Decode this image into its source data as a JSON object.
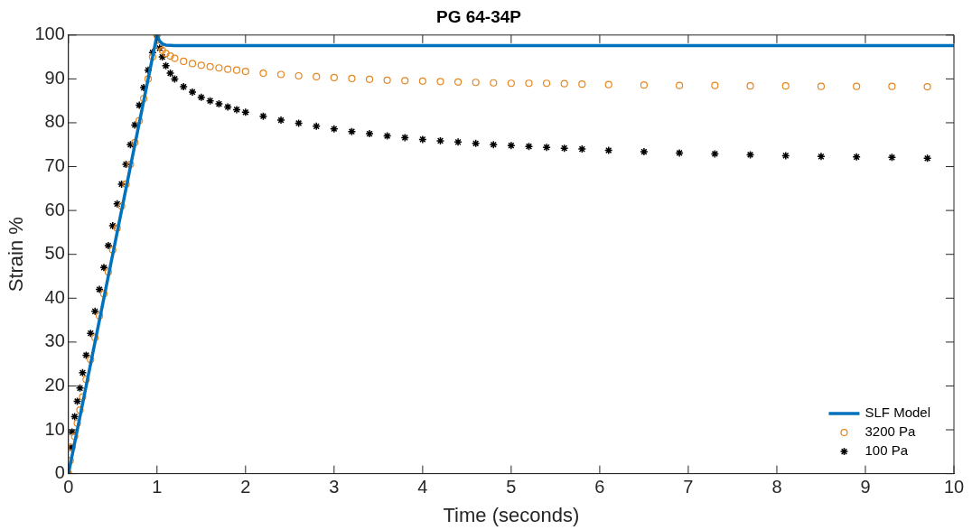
{
  "chart_data": {
    "type": "scatter",
    "title": "PG 64-34P",
    "xlabel": "Time (seconds)",
    "ylabel": "Strain %",
    "xlim": [
      0,
      10
    ],
    "xticks": [
      0,
      1,
      2,
      3,
      4,
      5,
      6,
      7,
      8,
      9,
      10
    ],
    "ylim": [
      0,
      100
    ],
    "yticks": [
      0,
      10,
      20,
      30,
      40,
      50,
      60,
      70,
      80,
      90,
      100
    ],
    "grid": false,
    "legend": "bottom right",
    "series": [
      {
        "name": "SLF Model",
        "type": "line",
        "color": "#0072bd",
        "marker": "none",
        "line_style": "solid",
        "x": [
          0,
          1,
          1.03,
          1.06,
          1.1,
          1.2,
          10
        ],
        "values": [
          0,
          100,
          98.6,
          98,
          97.7,
          97.6,
          97.6
        ]
      },
      {
        "name": "3200 Pa",
        "type": "scatter",
        "color": "#e6861e",
        "marker": "circle",
        "x": [
          0,
          0.02,
          0.04,
          0.07,
          0.1,
          0.13,
          0.16,
          0.2,
          0.25,
          0.3,
          0.35,
          0.4,
          0.45,
          0.5,
          0.55,
          0.6,
          0.65,
          0.7,
          0.75,
          0.8,
          0.85,
          0.9,
          0.95,
          1.0,
          1.03,
          1.06,
          1.1,
          1.15,
          1.2,
          1.3,
          1.4,
          1.5,
          1.6,
          1.7,
          1.8,
          1.9,
          2.0,
          2.2,
          2.4,
          2.6,
          2.8,
          3.0,
          3.2,
          3.4,
          3.6,
          3.8,
          4.0,
          4.2,
          4.4,
          4.6,
          4.8,
          5.0,
          5.2,
          5.4,
          5.6,
          5.8,
          6.1,
          6.5,
          6.9,
          7.3,
          7.7,
          8.1,
          8.5,
          8.9,
          9.3,
          9.7
        ],
        "values": [
          0,
          3,
          6,
          8.5,
          11.5,
          14.5,
          17.5,
          21.5,
          26,
          31,
          36,
          41,
          46,
          51,
          56,
          61,
          66,
          70.5,
          75.5,
          80.5,
          85.5,
          90,
          95,
          100,
          97.5,
          96.5,
          95.8,
          95.2,
          94.7,
          94.0,
          93.5,
          93.1,
          92.8,
          92.5,
          92.2,
          92.0,
          91.7,
          91.3,
          91.0,
          90.7,
          90.5,
          90.3,
          90.1,
          89.9,
          89.7,
          89.6,
          89.5,
          89.4,
          89.3,
          89.2,
          89.1,
          89.0,
          89.0,
          89.0,
          88.9,
          88.8,
          88.7,
          88.6,
          88.5,
          88.5,
          88.4,
          88.4,
          88.3,
          88.3,
          88.3,
          88.2
        ]
      },
      {
        "name": "100 Pa",
        "color": "#000000",
        "marker": "cross",
        "x": [
          0,
          0.02,
          0.04,
          0.07,
          0.1,
          0.13,
          0.16,
          0.2,
          0.25,
          0.3,
          0.35,
          0.4,
          0.45,
          0.5,
          0.55,
          0.6,
          0.65,
          0.7,
          0.75,
          0.8,
          0.85,
          0.9,
          0.95,
          1.0,
          1.03,
          1.06,
          1.1,
          1.15,
          1.2,
          1.3,
          1.4,
          1.5,
          1.6,
          1.7,
          1.8,
          1.9,
          2.0,
          2.2,
          2.4,
          2.6,
          2.8,
          3.0,
          3.2,
          3.4,
          3.6,
          3.8,
          4.0,
          4.2,
          4.4,
          4.6,
          4.8,
          5.0,
          5.2,
          5.4,
          5.6,
          5.8,
          6.1,
          6.5,
          6.9,
          7.3,
          7.7,
          8.1,
          8.5,
          8.9,
          9.3,
          9.7
        ],
        "values": [
          0,
          6,
          9.5,
          13,
          16.5,
          19.5,
          23,
          27,
          32,
          37,
          42,
          47,
          52,
          56.5,
          61.5,
          66,
          70.5,
          75,
          79.5,
          84,
          88,
          92,
          96,
          100,
          97,
          95,
          93,
          91.3,
          90,
          88.2,
          87,
          85.8,
          85,
          84.3,
          83.6,
          83,
          82.4,
          81.5,
          80.6,
          79.9,
          79.2,
          78.6,
          78,
          77.5,
          77,
          76.6,
          76.2,
          75.9,
          75.6,
          75.3,
          75.0,
          74.8,
          74.6,
          74.4,
          74.2,
          74.0,
          73.7,
          73.4,
          73.1,
          72.9,
          72.7,
          72.5,
          72.3,
          72.2,
          72.1,
          71.9
        ]
      }
    ]
  }
}
